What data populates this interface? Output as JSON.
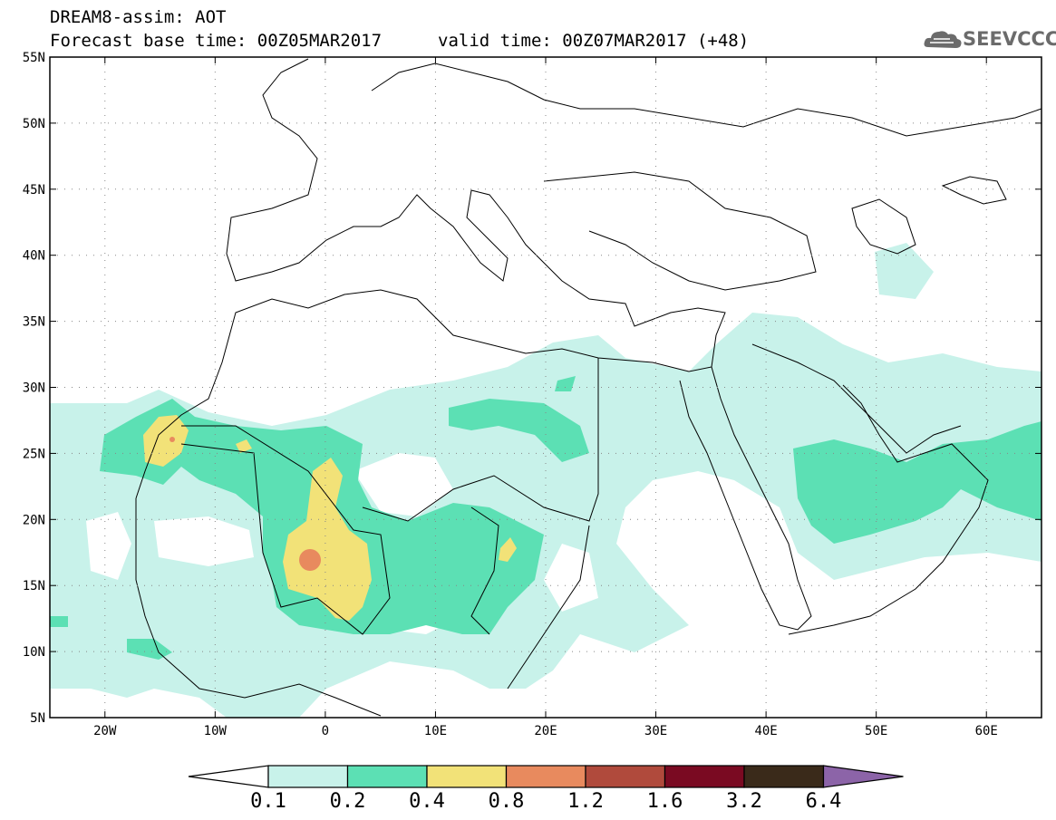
{
  "header": {
    "title": "DREAM8-assim: AOT",
    "forecast_base": "Forecast base time: 00Z05MAR2017",
    "valid_time": "valid time: 00Z07MAR2017 (+48)"
  },
  "logo": {
    "text": "SEEVCCC",
    "icon": "cloud-icon",
    "color": "#6b6b6b"
  },
  "map": {
    "lon_range": [
      -25,
      65
    ],
    "lat_range": [
      5,
      55
    ],
    "lon_ticks": [
      {
        "value": -20,
        "label": "20W"
      },
      {
        "value": -10,
        "label": "10W"
      },
      {
        "value": 0,
        "label": "0"
      },
      {
        "value": 10,
        "label": "10E"
      },
      {
        "value": 20,
        "label": "20E"
      },
      {
        "value": 30,
        "label": "30E"
      },
      {
        "value": 40,
        "label": "40E"
      },
      {
        "value": 50,
        "label": "50E"
      },
      {
        "value": 60,
        "label": "60E"
      }
    ],
    "lat_ticks": [
      {
        "value": 55,
        "label": "55N"
      },
      {
        "value": 50,
        "label": "50N"
      },
      {
        "value": 45,
        "label": "45N"
      },
      {
        "value": 40,
        "label": "40N"
      },
      {
        "value": 35,
        "label": "35N"
      },
      {
        "value": 30,
        "label": "30N"
      },
      {
        "value": 25,
        "label": "25N"
      },
      {
        "value": 20,
        "label": "20N"
      },
      {
        "value": 15,
        "label": "15N"
      },
      {
        "value": 10,
        "label": "10N"
      },
      {
        "value": 5,
        "label": "5N"
      }
    ],
    "grid": true
  },
  "colorbar": {
    "labels": [
      "0.1",
      "0.2",
      "0.4",
      "0.8",
      "1.2",
      "1.6",
      "3.2",
      "6.4"
    ],
    "colors": [
      "#c8f2ea",
      "#5ce0b4",
      "#f2e278",
      "#e88a5e",
      "#b04a3c",
      "#7a0a22",
      "#3a2a1a",
      "#8c64a8"
    ]
  }
}
